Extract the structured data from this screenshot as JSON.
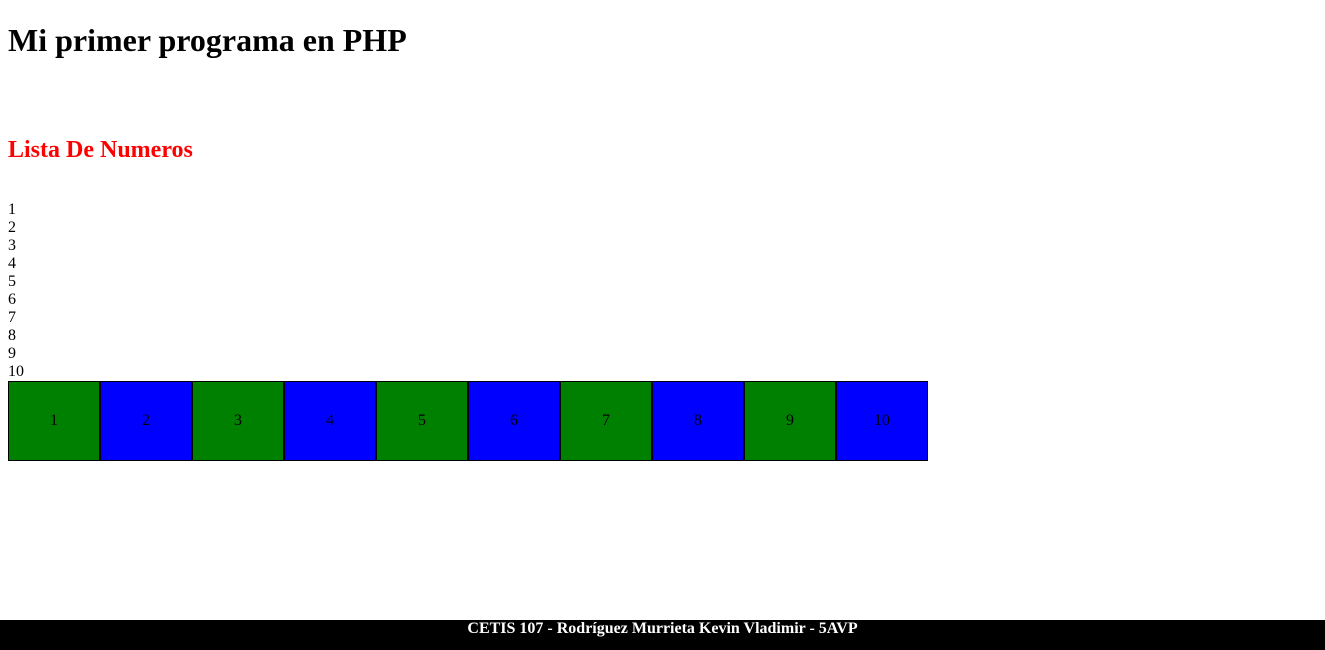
{
  "header": {
    "title": "Mi primer programa en PHP"
  },
  "main": {
    "section_title": "Lista De Numeros",
    "section_title_color": "#ff0000",
    "numbers": [
      "1",
      "2",
      "3",
      "4",
      "5",
      "6",
      "7",
      "8",
      "9",
      "10"
    ],
    "boxes": [
      {
        "label": "1",
        "color": "#008000"
      },
      {
        "label": "2",
        "color": "#0000ff"
      },
      {
        "label": "3",
        "color": "#008000"
      },
      {
        "label": "4",
        "color": "#0000ff"
      },
      {
        "label": "5",
        "color": "#008000"
      },
      {
        "label": "6",
        "color": "#0000ff"
      },
      {
        "label": "7",
        "color": "#008000"
      },
      {
        "label": "8",
        "color": "#0000ff"
      },
      {
        "label": "9",
        "color": "#008000"
      },
      {
        "label": "10",
        "color": "#0000ff"
      }
    ]
  },
  "footer": {
    "text": "CETIS 107 - Rodríguez Murrieta Kevin Vladimir - 5AVP",
    "background": "#000000",
    "color": "#ffffff"
  }
}
